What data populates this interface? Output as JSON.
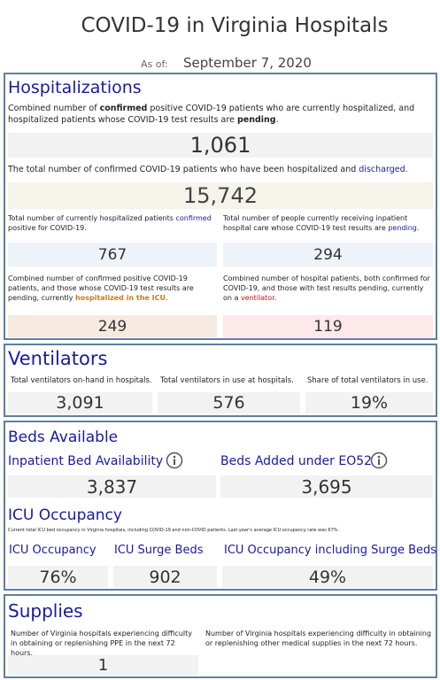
{
  "title": "COVID-19 in Virginia Hospitals",
  "as_of": {
    "label": "As of:",
    "date": "September 7, 2020"
  },
  "hospitalizations": {
    "heading": "Hospitalizations",
    "current": {
      "text": [
        "Combined number of ",
        "confirmed",
        " positive COVID-19 patients who are currently hospitalized, and hospitalized patients whose COVID-19 test results are ",
        "pending",
        "."
      ],
      "value": "1,061"
    },
    "discharged": {
      "text": [
        "The total number of confirmed COVID-19 patients who have been hospitalized and ",
        "discharged",
        "."
      ],
      "value": "15,742"
    },
    "confirmed": {
      "text": [
        "Total number of currently hospitalized patients ",
        "confirmed",
        " positive for COVID-19."
      ],
      "value": "767"
    },
    "pending": {
      "text": [
        "Total number of people currently receiving inpatient hospital care whose COVID-19 test results are ",
        "pending",
        "."
      ],
      "value": "294"
    },
    "icu": {
      "text": [
        "Combined number of confirmed positive COVID-19 patients, and those whose COVID-19 test results are pending, currently ",
        "hospitalized in the ICU",
        "."
      ],
      "value": "249"
    },
    "ventilator": {
      "text": [
        "Combined number of hospital patients, both confirmed for COVID-19, and those with test results pending, currently on a ",
        "ventilator",
        "."
      ],
      "value": "119"
    }
  },
  "ventilators": {
    "heading": "Ventilators",
    "metrics": [
      {
        "label": "Total ventilators on-hand in hospitals.",
        "value": "3,091"
      },
      {
        "label": "Total ventilators in use at hospitals.",
        "value": "576"
      },
      {
        "label": "Share of total ventilators in use.",
        "value": "19%"
      }
    ]
  },
  "beds": {
    "heading": "Beds Available",
    "metrics": [
      {
        "label": "Inpatient Bed Availability",
        "value": "3,837"
      },
      {
        "label": "Beds Added under EO52",
        "value": "3,695"
      }
    ],
    "icu_heading": "ICU Occupancy",
    "icu_note": "Current total ICU bed occupancy in Virginia hospitals, including COVID-19 and non-COVID patients. Last year's average ICU occupancy rate was 67%.",
    "icu_metrics": [
      {
        "label": "ICU Occupancy",
        "value": "76%"
      },
      {
        "label": "ICU Surge Beds",
        "value": "902"
      },
      {
        "label": "ICU Occupancy including Surge Beds",
        "value": "49%"
      }
    ]
  },
  "supplies": {
    "heading": "Supplies",
    "metrics": [
      {
        "label": "Number of Virginia hospitals experiencing difficulty in obtaining or replenishing PPE in the next 72 hours.",
        "value": "1"
      },
      {
        "label": "Number of Virginia hospitals experiencing difficulty in obtaining or replenishing other medical supplies in the next 72 hours."
      }
    ]
  }
}
